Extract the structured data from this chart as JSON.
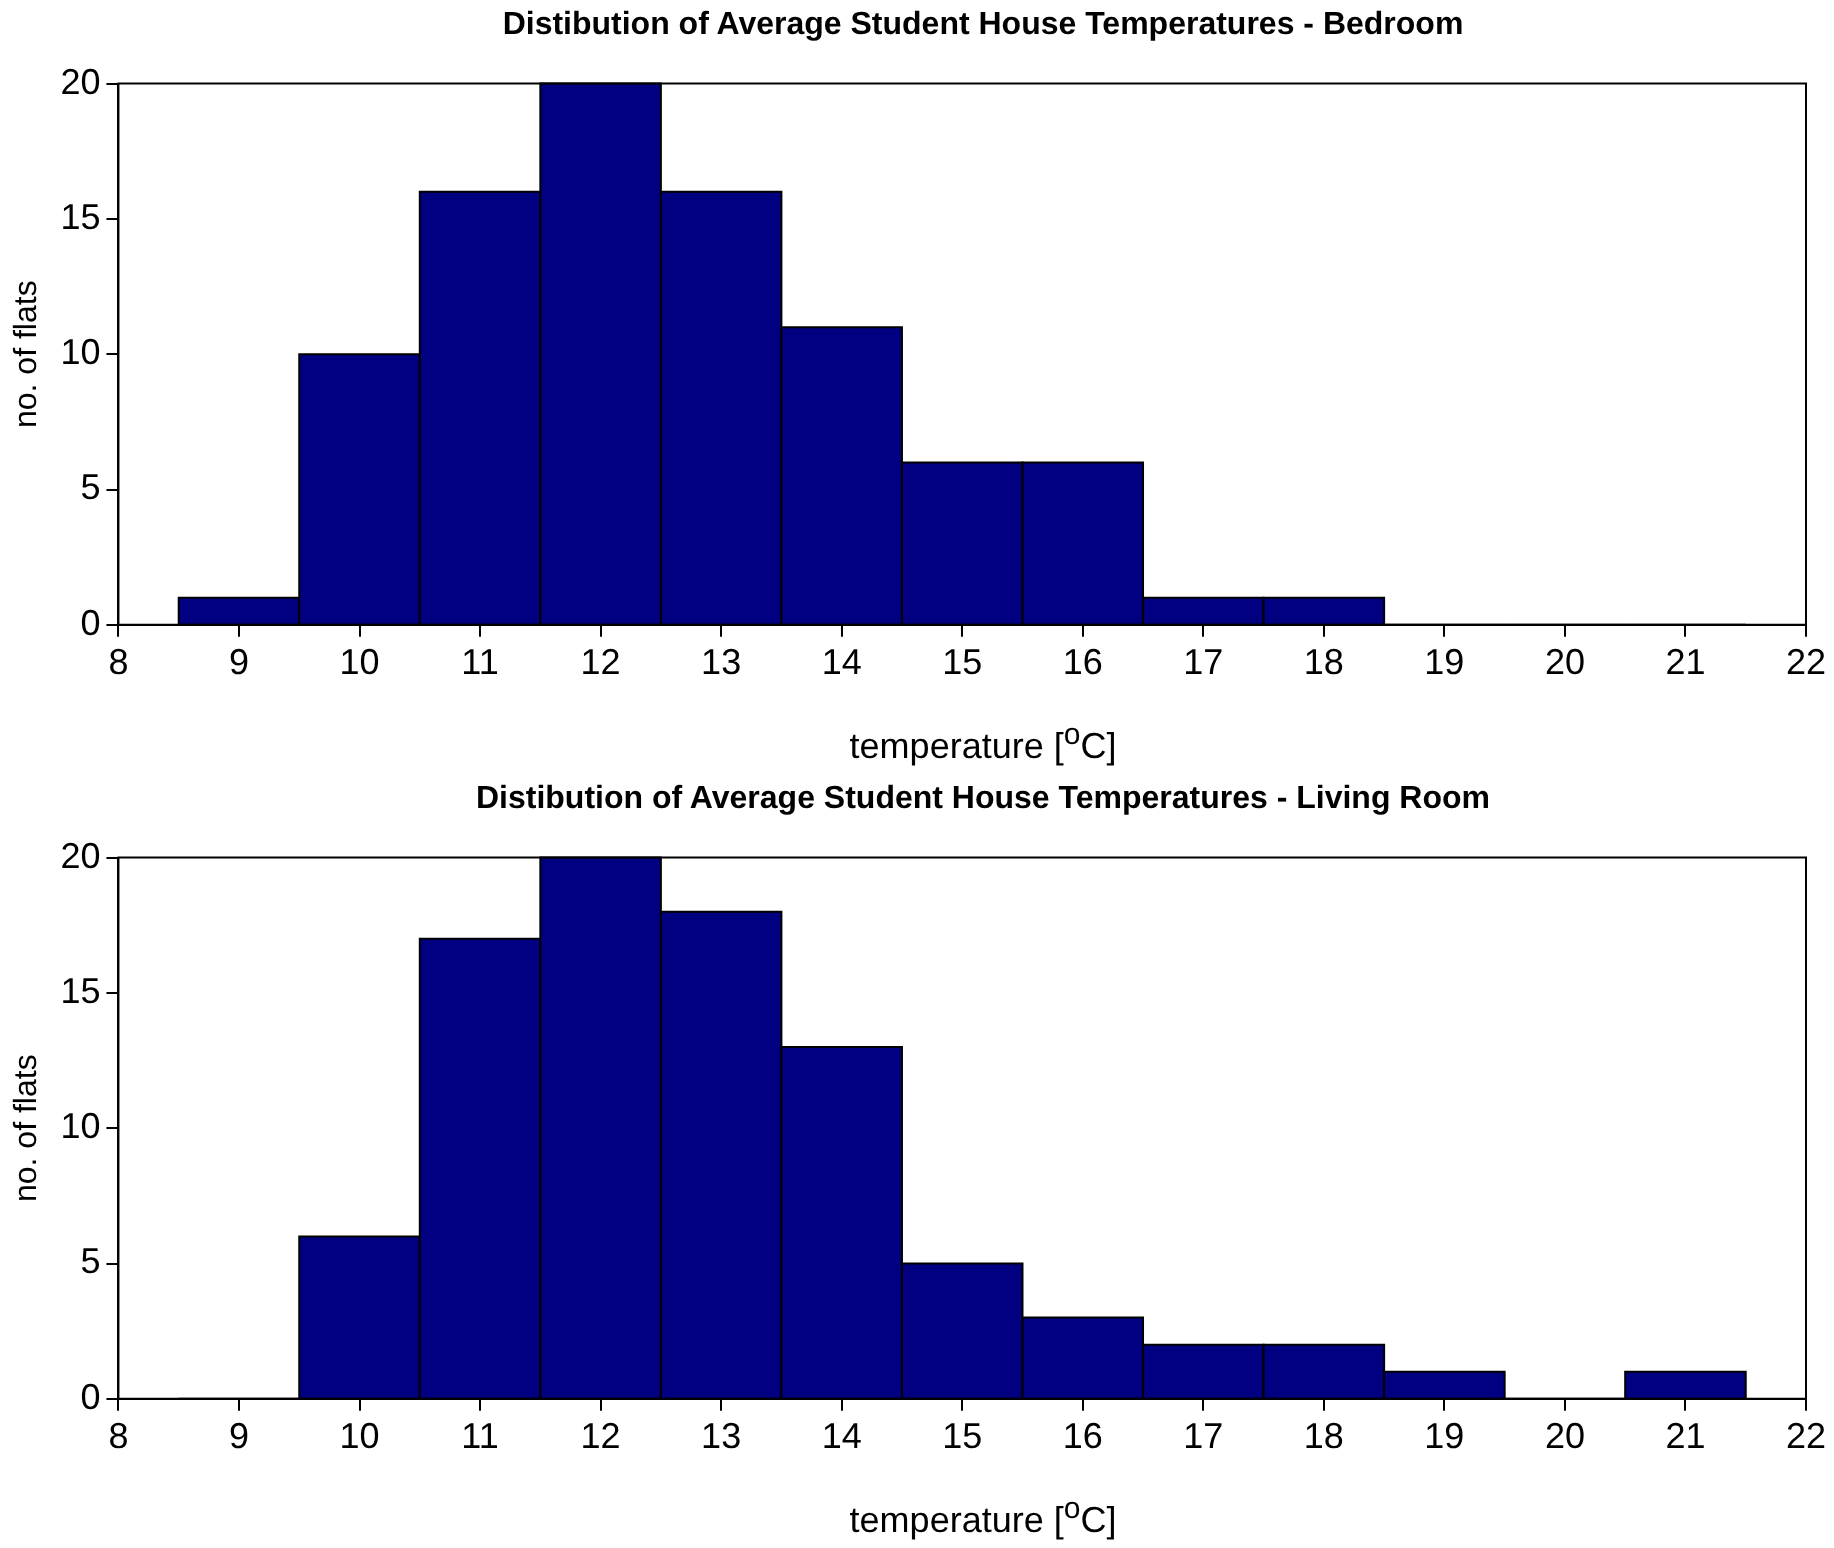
{
  "chart_data": [
    {
      "type": "histogram",
      "title": "Distibution of Average Student House Temperatures - Bedroom",
      "xlabel": "temperature [$^{o}$C]",
      "ylabel": "no. of flats",
      "bins": [
        8.5,
        9.5,
        10.5,
        11.5,
        12.5,
        13.5,
        14.5,
        15.5,
        16.5,
        17.5,
        18.5,
        19.5,
        20.5,
        21.5
      ],
      "values": [
        1,
        10,
        16,
        20,
        16,
        11,
        6,
        6,
        1,
        1,
        0,
        0,
        0
      ],
      "color": "#000080",
      "xlim": [
        8,
        22
      ],
      "xticks": [
        8,
        9,
        10,
        11,
        12,
        13,
        14,
        15,
        16,
        17,
        18,
        19,
        20,
        21,
        22
      ],
      "ylim": [
        0,
        20
      ],
      "yticks": [
        0,
        5,
        10,
        15,
        20
      ],
      "grid": false,
      "legend": false
    },
    {
      "type": "histogram",
      "title": "Distibution of Average Student House Temperatures - Living Room",
      "xlabel": "temperature [$^{o}$C]",
      "ylabel": "no. of flats",
      "bins": [
        8.5,
        9.5,
        10.5,
        11.5,
        12.5,
        13.5,
        14.5,
        15.5,
        16.5,
        17.5,
        18.5,
        19.5,
        20.5,
        21.5
      ],
      "values": [
        0,
        6,
        17,
        20,
        18,
        13,
        5,
        3,
        2,
        2,
        1,
        0,
        1
      ],
      "color": "#000080",
      "xlim": [
        8,
        22
      ],
      "xticks": [
        8,
        9,
        10,
        11,
        12,
        13,
        14,
        15,
        16,
        17,
        18,
        19,
        20,
        21,
        22
      ],
      "ylim": [
        0,
        20
      ],
      "yticks": [
        0,
        5,
        10,
        15,
        20
      ],
      "grid": false,
      "legend": false
    }
  ]
}
